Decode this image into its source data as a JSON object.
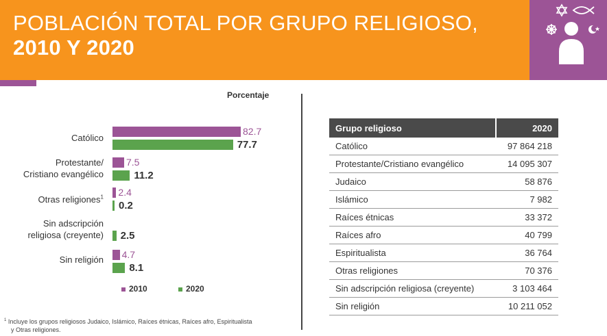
{
  "header": {
    "title_line1": "POBLACIÓN TOTAL POR GRUPO RELIGIOSO,",
    "title_line2": "2010 Y 2020",
    "accent_orange": "#f7941d",
    "accent_purple": "#9c5496",
    "icons": [
      "star-of-david-icon",
      "ichthys-fish-icon",
      "dharma-wheel-icon",
      "crescent-star-icon",
      "person-icon"
    ]
  },
  "chart_data": {
    "type": "bar",
    "orientation": "horizontal",
    "ylabel": "Porcentaje",
    "categories": [
      "Católico",
      "Protestante/ Cristiano evangélico",
      "Otras religiones",
      "Sin adscripción religiosa (creyente)",
      "Sin religión"
    ],
    "category_lines": [
      [
        "Católico"
      ],
      [
        "Protestante/",
        "Cristiano evangélico"
      ],
      [
        "Otras religiones"
      ],
      [
        "Sin adscripción",
        "religiosa (creyente)"
      ],
      [
        "Sin religión"
      ]
    ],
    "category_footnote_mark": [
      "",
      "",
      "1",
      "",
      ""
    ],
    "series": [
      {
        "name": "2010",
        "values": [
          82.7,
          7.5,
          2.4,
          null,
          4.7
        ],
        "labels": [
          "82.7",
          "7.5",
          "2.4",
          "",
          "4.7"
        ],
        "color": "#9c5496"
      },
      {
        "name": "2020",
        "values": [
          77.7,
          11.2,
          0.2,
          2.5,
          8.1
        ],
        "labels": [
          "77.7",
          "11.2",
          "0.2",
          "2.5",
          "8.1"
        ],
        "color": "#5ba34d"
      }
    ],
    "legend": [
      "2010",
      "2020"
    ],
    "legend_position": "bottom",
    "xlim": [
      0,
      100
    ],
    "grid": false
  },
  "table": {
    "headers": [
      "Grupo religioso",
      "2020"
    ],
    "rows": [
      [
        "Católico",
        "97 864 218"
      ],
      [
        "Protestante/Cristiano evangélico",
        "14 095 307"
      ],
      [
        "Judaico",
        "58 876"
      ],
      [
        "Islámico",
        "7 982"
      ],
      [
        "Raíces étnicas",
        "33 372"
      ],
      [
        "Raíces afro",
        "40 799"
      ],
      [
        "Espiritualista",
        "36 764"
      ],
      [
        "Otras religiones",
        "70 376"
      ],
      [
        "Sin adscripción religiosa (creyente)",
        "3 103 464"
      ],
      [
        "Sin religión",
        "10 211 052"
      ]
    ]
  },
  "footnote": {
    "mark": "1",
    "line1": " Incluye los grupos religiosos Judaico, Islámico, Raíces étnicas, Raíces afro, Espiritualista",
    "line2": "y Otras religiones."
  }
}
